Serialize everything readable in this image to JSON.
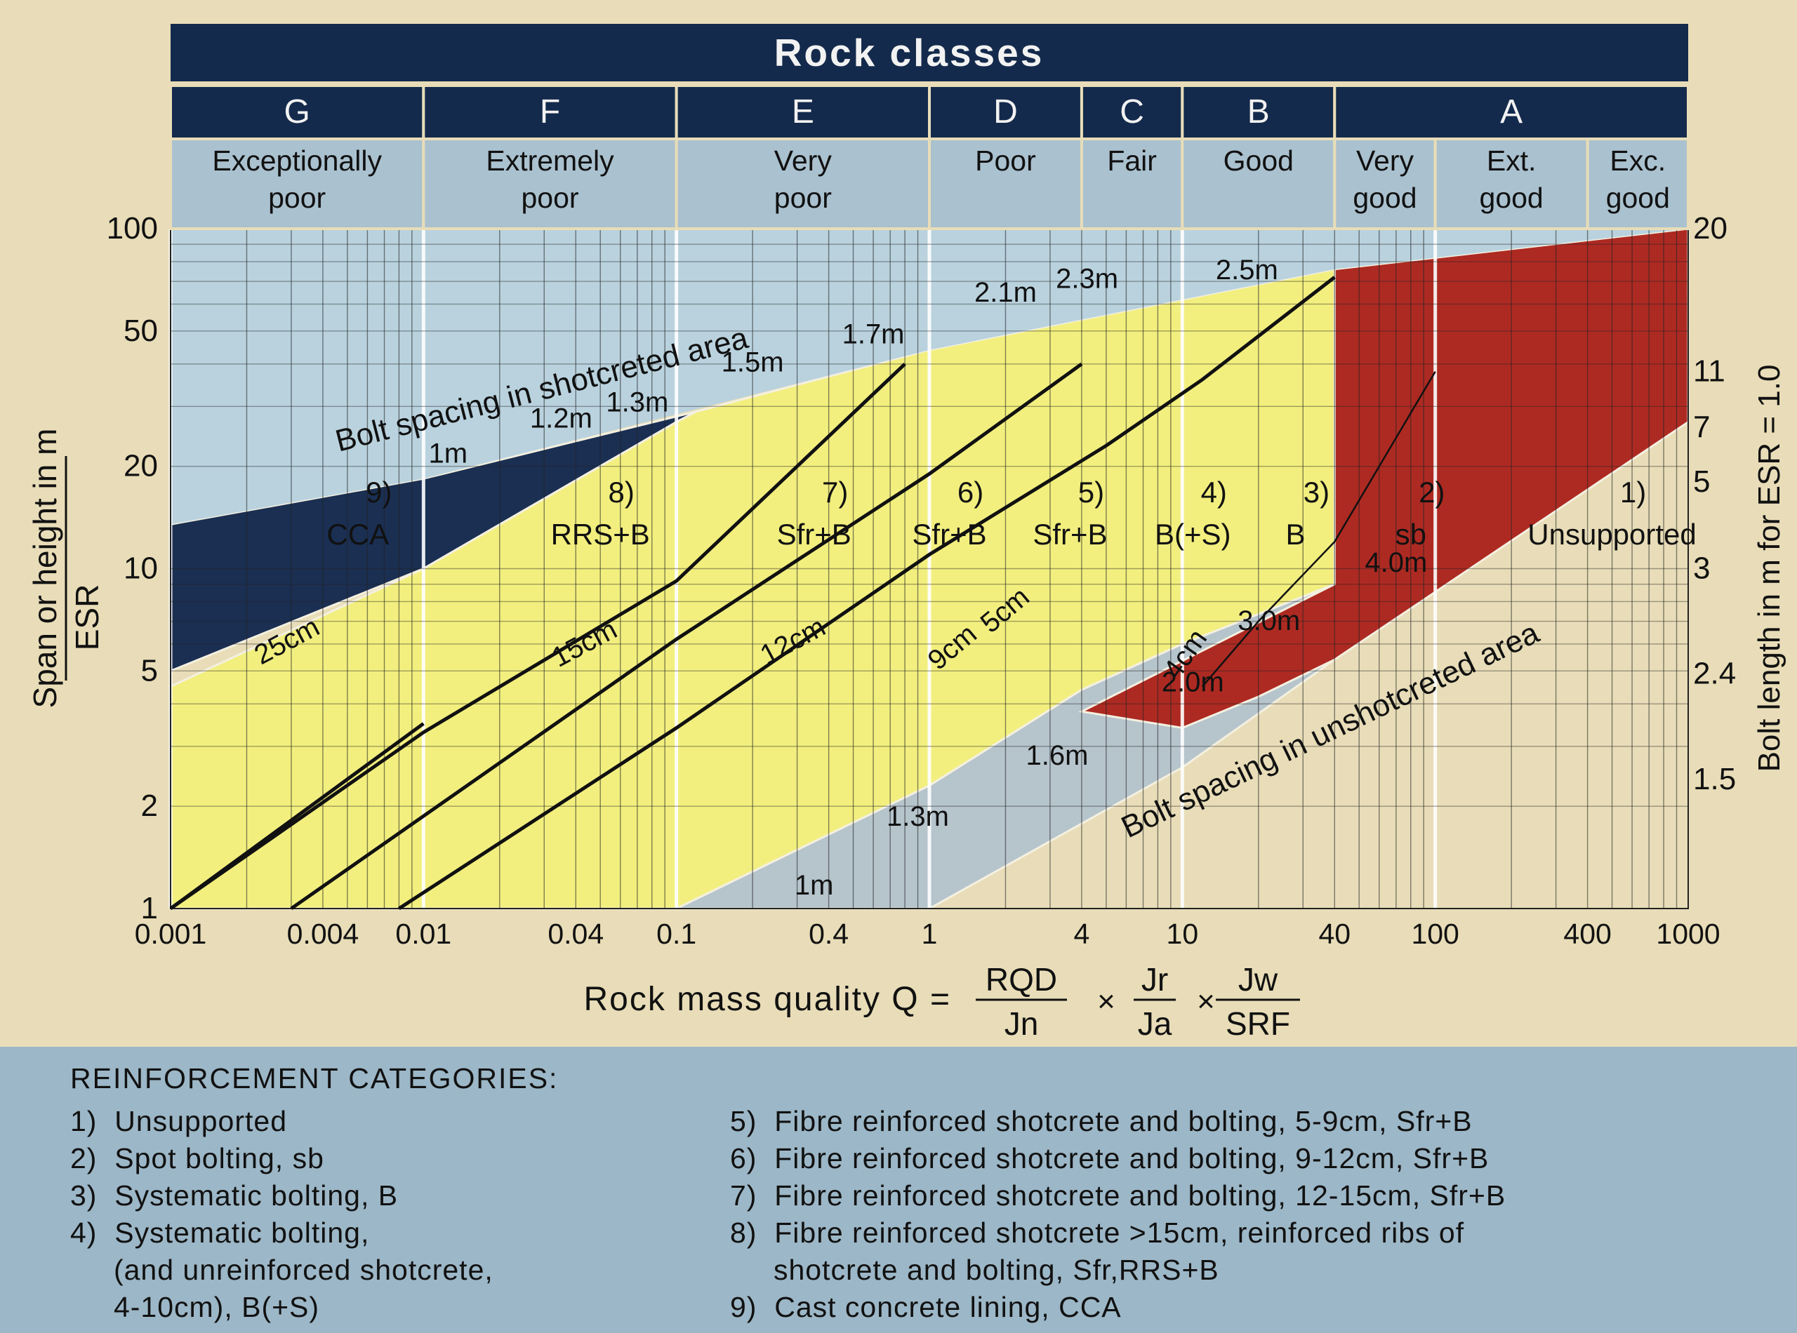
{
  "chart_data": {
    "type": "area",
    "title": "Rock classes",
    "rock_classes": [
      {
        "letter": "G",
        "name": [
          "Exceptionally",
          "poor"
        ],
        "q_range": [
          0.001,
          0.01
        ]
      },
      {
        "letter": "F",
        "name": [
          "Extremely",
          "poor"
        ],
        "q_range": [
          0.01,
          0.1
        ]
      },
      {
        "letter": "E",
        "name": [
          "Very",
          "poor"
        ],
        "q_range": [
          0.1,
          1
        ]
      },
      {
        "letter": "D",
        "name": [
          "Poor"
        ],
        "q_range": [
          1,
          4
        ]
      },
      {
        "letter": "C",
        "name": [
          "Fair"
        ],
        "q_range": [
          4,
          10
        ]
      },
      {
        "letter": "B",
        "name": [
          "Good"
        ],
        "q_range": [
          10,
          40
        ]
      },
      {
        "letter": "A",
        "name": [],
        "q_range": [
          40,
          1000
        ]
      }
    ],
    "class_a_subclasses": [
      {
        "name": [
          "Very",
          "good"
        ],
        "q_range": [
          40,
          100
        ]
      },
      {
        "name": [
          "Ext.",
          "good"
        ],
        "q_range": [
          100,
          400
        ]
      },
      {
        "name": [
          "Exc.",
          "good"
        ],
        "q_range": [
          400,
          1000
        ]
      }
    ],
    "xlabel": "Rock mass quality Q =",
    "x_formula": [
      {
        "num": "RQD",
        "den": "Jn"
      },
      {
        "num": "Jr",
        "den": "Ja"
      },
      {
        "num": "Jw",
        "den": "SRF"
      }
    ],
    "x_scale": "log",
    "xlim": [
      0.001,
      1000
    ],
    "x_ticks": [
      0.001,
      0.004,
      0.01,
      0.04,
      0.1,
      0.4,
      1,
      4,
      10,
      40,
      100,
      400,
      1000
    ],
    "x_tick_labels": [
      "0.001",
      "0.004",
      "0.01",
      "0.04",
      "0.1",
      "0.4",
      "1",
      "4",
      "10",
      "40",
      "100",
      "400",
      "1000"
    ],
    "ylabel_top": "Span or height in m",
    "ylabel_bottom": "ESR",
    "y_scale": "log",
    "ylim": [
      1,
      100
    ],
    "y_ticks": [
      1,
      2,
      5,
      10,
      20,
      50,
      100
    ],
    "y_tick_labels": [
      "1",
      "2",
      "5",
      "10",
      "20",
      "50",
      "100"
    ],
    "y2label": "Bolt length in m for ESR = 1.0",
    "y2_ticks": [
      {
        "span": 2.4,
        "label": "1.5"
      },
      {
        "span": 4.9,
        "label": "2.4"
      },
      {
        "span": 10,
        "label": "3"
      },
      {
        "span": 18,
        "label": "5"
      },
      {
        "span": 26,
        "label": "7"
      },
      {
        "span": 38,
        "label": "11"
      },
      {
        "span": 100,
        "label": "20"
      }
    ],
    "regions": [
      {
        "name": "Cast concrete lining",
        "color": "#1a2f52",
        "polygon": [
          [
            0.001,
            13.5
          ],
          [
            0.001,
            5
          ],
          [
            0.01,
            10
          ],
          [
            0.1,
            27
          ],
          [
            0.12,
            29
          ],
          [
            0.01,
            18.4
          ]
        ]
      },
      {
        "name": "Fibre reinforced shotcrete",
        "color": "#f2ef7f",
        "polygon": [
          [
            0.001,
            4.5
          ],
          [
            0.001,
            1
          ],
          [
            0.1,
            1
          ],
          [
            1,
            2.3
          ],
          [
            4,
            4.4
          ],
          [
            10,
            6
          ],
          [
            40,
            9
          ],
          [
            40,
            76
          ],
          [
            1,
            44
          ],
          [
            0.12,
            29
          ],
          [
            0.1,
            27
          ],
          [
            0.01,
            10
          ]
        ]
      },
      {
        "name": "Systematic bolting",
        "color": "#b6c4cc",
        "polygon": [
          [
            0.1,
            1
          ],
          [
            1,
            1
          ],
          [
            10,
            2.6
          ],
          [
            40,
            5.4
          ],
          [
            40,
            9
          ],
          [
            10,
            6
          ],
          [
            4,
            4.4
          ],
          [
            1,
            2.3
          ]
        ]
      },
      {
        "name": "Spot bolting",
        "color": "#ad2a22",
        "polygon": [
          [
            40,
            76
          ],
          [
            1000,
            100
          ],
          [
            1000,
            27
          ],
          [
            40,
            5.4
          ],
          [
            20,
            4.2
          ],
          [
            10,
            3.4
          ],
          [
            4,
            3.8
          ],
          [
            40,
            9
          ]
        ]
      },
      {
        "name": "Unsupported",
        "color": "#b9d2de",
        "polygon": [
          [
            0.001,
            100
          ],
          [
            1000,
            100
          ],
          [
            40,
            76
          ],
          [
            1,
            44
          ],
          [
            0.01,
            18.4
          ],
          [
            0.001,
            13.5
          ]
        ]
      }
    ],
    "shotcrete_thickness_lines": [
      {
        "label": "25cm",
        "points": [
          [
            0.001,
            1
          ],
          [
            0.01,
            3.5
          ]
        ]
      },
      {
        "label": "15cm",
        "points": [
          [
            0.001,
            1
          ],
          [
            0.01,
            3.3
          ],
          [
            0.1,
            9.2
          ],
          [
            0.8,
            40
          ]
        ]
      },
      {
        "label": "12cm",
        "points": [
          [
            0.003,
            1
          ],
          [
            0.1,
            6.2
          ],
          [
            1,
            19
          ],
          [
            4,
            40
          ]
        ]
      },
      {
        "label": "9cm",
        "points": [
          [
            0.008,
            1
          ],
          [
            0.1,
            3.4
          ],
          [
            1,
            11
          ],
          [
            5,
            23
          ],
          [
            12,
            36
          ],
          [
            40,
            72
          ]
        ]
      },
      {
        "label": "5cm",
        "points": []
      },
      {
        "label": "4cm",
        "points": [
          [
            12,
            4.5
          ],
          [
            20,
            7
          ],
          [
            40,
            12
          ],
          [
            100,
            38
          ]
        ]
      }
    ],
    "bolt_spacing_shotcreted": [
      "1m",
      "1.2m",
      "1.3m",
      "1.5m",
      "1.7m",
      "2.1m",
      "2.3m",
      "2.5m"
    ],
    "bolt_spacing_unshotcreted": [
      "1m",
      "1.3m",
      "1.6m",
      "2.0m",
      "3.0m",
      "4.0m"
    ],
    "region_annotations": [
      {
        "label": "Bolt spacing in shotcreted area"
      },
      {
        "label": "Bolt spacing in unshotcreted area"
      }
    ],
    "category_labels": [
      {
        "num": "9)",
        "code": "CCA"
      },
      {
        "num": "8)",
        "code": "RRS+B"
      },
      {
        "num": "7)",
        "code": "Sfr+B"
      },
      {
        "num": "6)",
        "code": "Sfr+B"
      },
      {
        "num": "5)",
        "code": "Sfr+B"
      },
      {
        "num": "4)",
        "code": "B(+S)"
      },
      {
        "num": "3)",
        "code": "B"
      },
      {
        "num": "2)",
        "code": "sb"
      },
      {
        "num": "1)",
        "code": "Unsupported"
      }
    ]
  },
  "legend": {
    "title": "REINFORCEMENT CATEGORIES:",
    "left": [
      "1)  Unsupported",
      "2)  Spot bolting, sb",
      "3)  Systematic bolting, B",
      "4)  Systematic bolting,",
      "     (and unreinforced shotcrete,",
      "     4-10cm), B(+S)"
    ],
    "right": [
      "5)  Fibre reinforced shotcrete and bolting, 5-9cm, Sfr+B",
      "6)  Fibre reinforced shotcrete and bolting, 9-12cm, Sfr+B",
      "7)  Fibre reinforced shotcrete and bolting, 12-15cm, Sfr+B",
      "8)  Fibre reinforced shotcrete >15cm, reinforced ribs of",
      "     shotcrete and bolting, Sfr,RRS+B",
      "9)  Cast concrete lining, CCA"
    ]
  }
}
